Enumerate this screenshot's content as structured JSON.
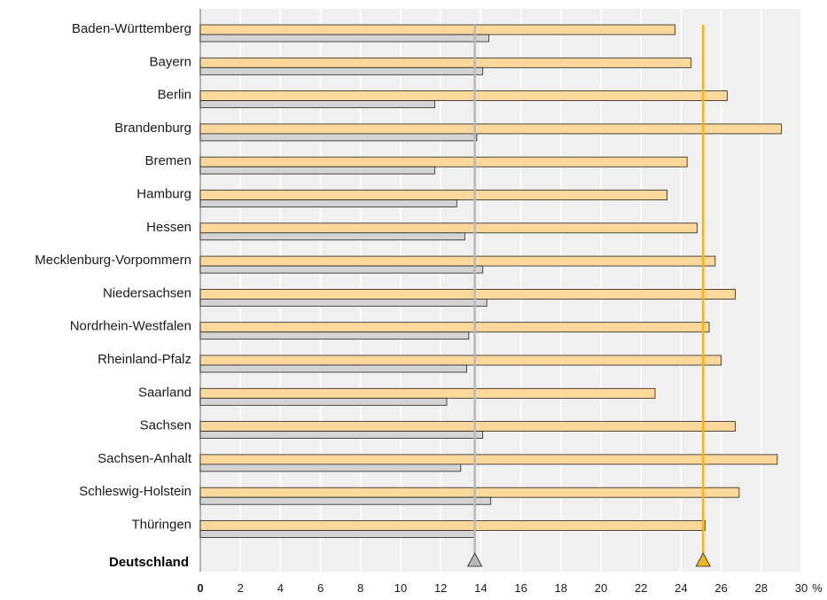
{
  "chart_data": {
    "type": "bar",
    "orientation": "horizontal",
    "categories": [
      "Baden-Württemberg",
      "Bayern",
      "Berlin",
      "Brandenburg",
      "Bremen",
      "Hamburg",
      "Hessen",
      "Mecklenburg-Vorpommern",
      "Niedersachsen",
      "Nordrhein-Westfalen",
      "Rheinland-Pfalz",
      "Saarland",
      "Sachsen",
      "Sachsen-Anhalt",
      "Schleswig-Holstein",
      "Thüringen"
    ],
    "series": [
      {
        "color": "#fdd89a",
        "values": [
          23.7,
          24.5,
          26.3,
          29.0,
          24.3,
          23.3,
          24.8,
          25.7,
          26.7,
          25.4,
          26.0,
          22.7,
          26.7,
          28.8,
          26.9,
          25.2
        ]
      },
      {
        "color": "#d4d4d4",
        "values": [
          14.4,
          14.1,
          11.7,
          13.8,
          11.7,
          12.8,
          13.2,
          14.1,
          14.3,
          13.4,
          13.3,
          12.3,
          14.1,
          13.0,
          14.5,
          13.7
        ]
      }
    ],
    "reference_lines": [
      {
        "color": "#f0b323",
        "value": 25.1
      },
      {
        "color": "#b8b8b8",
        "value": 13.7
      }
    ],
    "total_label": "Deutschland",
    "x_ticks": [
      "0",
      "2",
      "4",
      "6",
      "8",
      "10",
      "12",
      "14",
      "16",
      "18",
      "20",
      "22",
      "24",
      "26",
      "28",
      "30"
    ],
    "x_unit": "%",
    "xlim": [
      0,
      30
    ],
    "grid": true,
    "background": "#f0f0f0"
  }
}
